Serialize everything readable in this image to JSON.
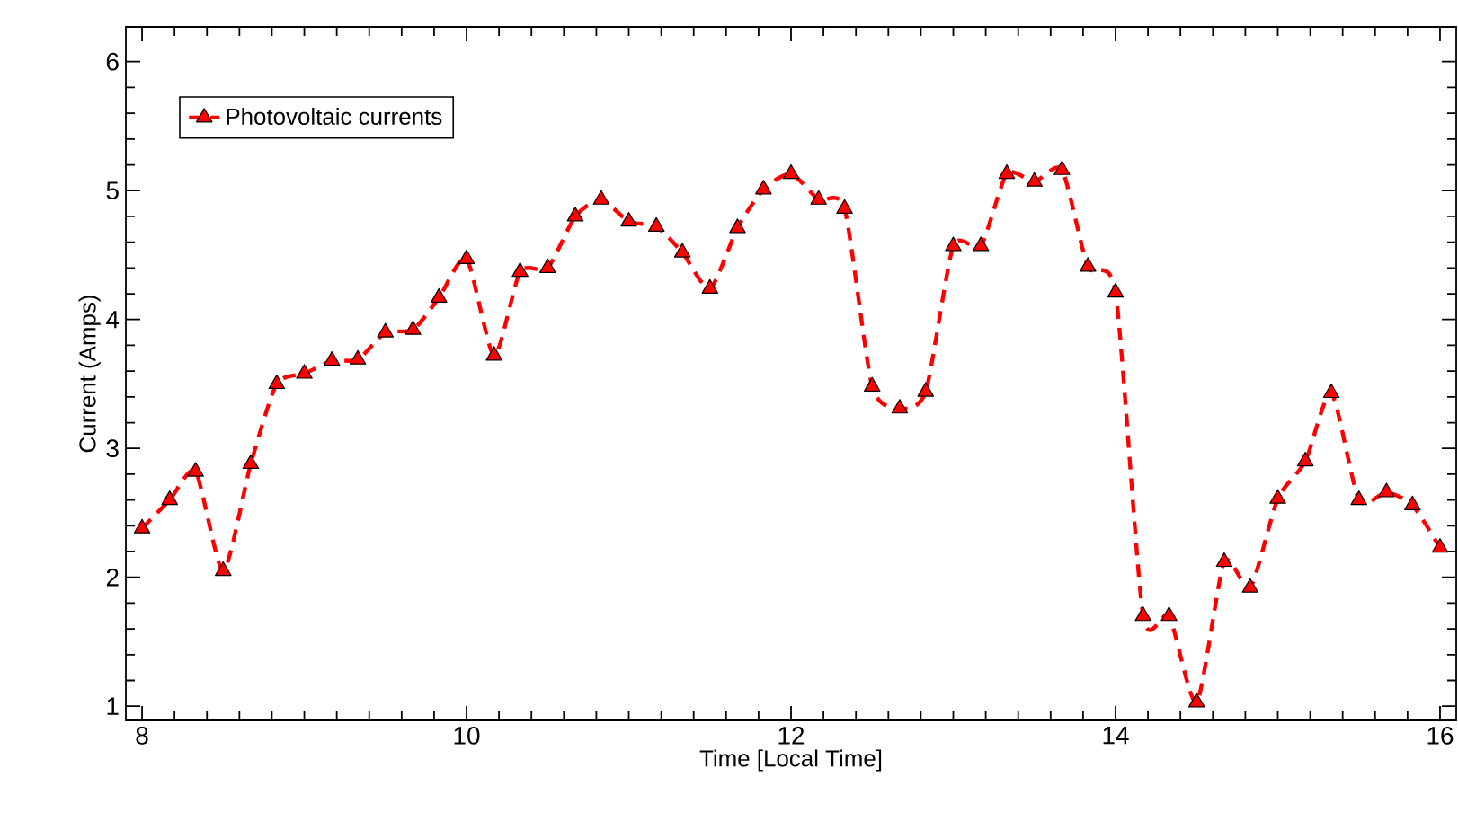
{
  "chart_data": {
    "type": "line",
    "xlabel": "Time [Local Time]",
    "ylabel": "Current (Amps)",
    "x": [
      8.0,
      8.17,
      8.33,
      8.5,
      8.67,
      8.83,
      9.0,
      9.17,
      9.33,
      9.5,
      9.67,
      9.83,
      10.0,
      10.17,
      10.33,
      10.5,
      10.67,
      10.83,
      11.0,
      11.17,
      11.33,
      11.5,
      11.67,
      11.83,
      12.0,
      12.17,
      12.33,
      12.5,
      12.67,
      12.83,
      13.0,
      13.17,
      13.33,
      13.5,
      13.67,
      13.83,
      14.0,
      14.17,
      14.33,
      14.5,
      14.67,
      14.83,
      15.0,
      15.17,
      15.33,
      15.5,
      15.67,
      15.83,
      16.0
    ],
    "series": [
      {
        "name": "Photovoltaic currents",
        "color": "#ff0000",
        "values": [
          2.38,
          2.6,
          2.82,
          2.05,
          2.88,
          3.5,
          3.58,
          3.68,
          3.69,
          3.9,
          3.92,
          4.17,
          4.47,
          3.72,
          4.37,
          4.4,
          4.8,
          4.93,
          4.76,
          4.72,
          4.52,
          4.24,
          4.71,
          5.01,
          5.13,
          4.93,
          4.86,
          3.48,
          3.31,
          3.44,
          4.57,
          4.57,
          5.13,
          5.07,
          5.16,
          4.41,
          4.21,
          1.7,
          1.7,
          1.03,
          2.12,
          1.92,
          2.61,
          2.9,
          3.43,
          2.6,
          2.66,
          2.56,
          2.23
        ]
      }
    ],
    "xlim": [
      7.9,
      16.1
    ],
    "ylim": [
      0.89,
      6.27
    ],
    "xticks": [
      8,
      10,
      12,
      14,
      16
    ],
    "yticks": [
      1,
      2,
      3,
      4,
      5,
      6
    ],
    "legend": "top left",
    "marker": "triangle",
    "line_style": "dashed",
    "grid": false
  }
}
